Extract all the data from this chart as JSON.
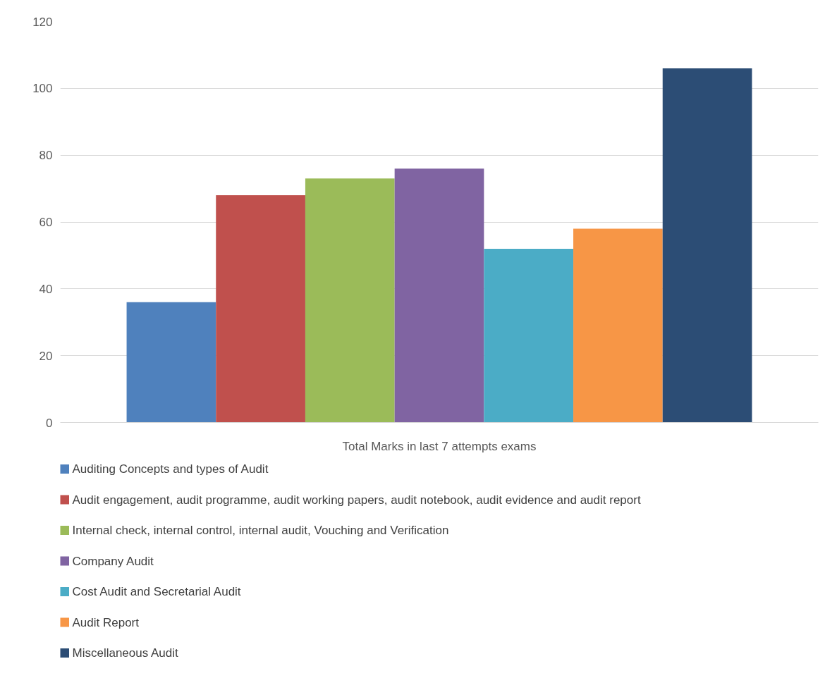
{
  "chart_data": {
    "type": "bar",
    "categories": [
      "Total Marks in last 7 attempts exams"
    ],
    "series": [
      {
        "name": "Auditing Concepts and types of Audit",
        "color": "#4f81bd",
        "values": [
          36
        ]
      },
      {
        "name": "Audit engagement, audit programme, audit working papers, audit notebook, audit evidence and audit report",
        "color": "#c0504d",
        "values": [
          68
        ]
      },
      {
        "name": "Internal check, internal control, internal audit, Vouching and Verification",
        "color": "#9bbb59",
        "values": [
          73
        ]
      },
      {
        "name": "Company Audit",
        "color": "#8064a2",
        "values": [
          76
        ]
      },
      {
        "name": "Cost Audit and Secretarial Audit",
        "color": "#4bacc6",
        "values": [
          52
        ]
      },
      {
        "name": "Audit Report",
        "color": "#f79646",
        "values": [
          58
        ]
      },
      {
        "name": "Miscellaneous Audit",
        "color": "#2c4d75",
        "values": [
          106
        ]
      }
    ],
    "ylim": [
      0,
      120
    ],
    "yticks": [
      0,
      20,
      40,
      60,
      80,
      100,
      120
    ],
    "grid": "y",
    "legend": "bottom"
  }
}
